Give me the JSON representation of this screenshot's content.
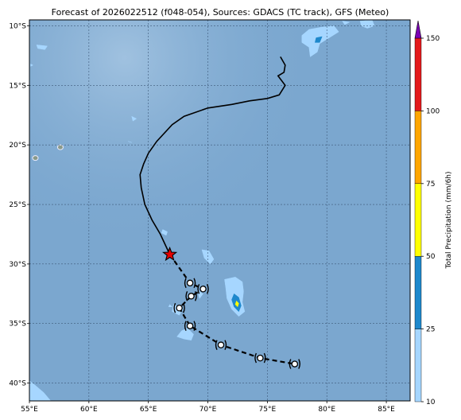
{
  "title": "Forecast of 2026022512 (f048-054), Sources: GDACS (TC track), GFS (Meteo)",
  "map": {
    "lon_range": [
      55,
      87
    ],
    "lat_range": [
      -41.5,
      -9.5
    ],
    "lon_ticks": [
      {
        "value": 55,
        "label": "55°E"
      },
      {
        "value": 60,
        "label": "60°E"
      },
      {
        "value": 65,
        "label": "65°E"
      },
      {
        "value": 70,
        "label": "70°E"
      },
      {
        "value": 75,
        "label": "75°E"
      },
      {
        "value": 80,
        "label": "80°E"
      },
      {
        "value": 85,
        "label": "85°E"
      }
    ],
    "lat_ticks": [
      {
        "value": -10,
        "label": "10°S"
      },
      {
        "value": -15,
        "label": "15°S"
      },
      {
        "value": -20,
        "label": "20°S"
      },
      {
        "value": -25,
        "label": "25°S"
      },
      {
        "value": -30,
        "label": "30°S"
      },
      {
        "value": -35,
        "label": "35°S"
      },
      {
        "value": -40,
        "label": "40°S"
      }
    ],
    "gridlines": true,
    "ocean_color": "#7ba7cf",
    "past_track_color": "#000000",
    "forecast_track_color": "#000000",
    "current_position_marker": "red-star",
    "current_position": {
      "lon": 66.8,
      "lat": -29.2
    },
    "past_track": [
      {
        "lon": 76.1,
        "lat": -12.6
      },
      {
        "lon": 76.5,
        "lat": -13.3
      },
      {
        "lon": 76.4,
        "lat": -13.9
      },
      {
        "lon": 75.9,
        "lat": -14.2
      },
      {
        "lon": 76.5,
        "lat": -15.0
      },
      {
        "lon": 76.0,
        "lat": -15.8
      },
      {
        "lon": 75.0,
        "lat": -16.1
      },
      {
        "lon": 73.5,
        "lat": -16.3
      },
      {
        "lon": 72.0,
        "lat": -16.6
      },
      {
        "lon": 70.0,
        "lat": -16.9
      },
      {
        "lon": 68.0,
        "lat": -17.6
      },
      {
        "lon": 67.0,
        "lat": -18.3
      },
      {
        "lon": 65.7,
        "lat": -19.7
      },
      {
        "lon": 65.0,
        "lat": -20.7
      },
      {
        "lon": 64.6,
        "lat": -21.6
      },
      {
        "lon": 64.3,
        "lat": -22.5
      },
      {
        "lon": 64.4,
        "lat": -23.6
      },
      {
        "lon": 64.7,
        "lat": -25.0
      },
      {
        "lon": 65.3,
        "lat": -26.3
      },
      {
        "lon": 66.0,
        "lat": -27.5
      },
      {
        "lon": 66.8,
        "lat": -29.2
      }
    ],
    "forecast_track": [
      {
        "lon": 66.8,
        "lat": -29.2
      },
      {
        "lon": 68.5,
        "lat": -31.6
      },
      {
        "lon": 69.6,
        "lat": -32.1
      },
      {
        "lon": 68.6,
        "lat": -32.7
      },
      {
        "lon": 67.6,
        "lat": -33.7
      },
      {
        "lon": 68.5,
        "lat": -35.2
      },
      {
        "lon": 71.1,
        "lat": -36.8
      },
      {
        "lon": 74.4,
        "lat": -37.9
      },
      {
        "lon": 77.3,
        "lat": -38.4
      }
    ],
    "forecast_symbols": [
      {
        "lon": 68.5,
        "lat": -31.6
      },
      {
        "lon": 69.6,
        "lat": -32.1
      },
      {
        "lon": 68.6,
        "lat": -32.7
      },
      {
        "lon": 67.6,
        "lat": -33.7
      },
      {
        "lon": 68.5,
        "lat": -35.2
      },
      {
        "lon": 71.1,
        "lat": -36.8
      },
      {
        "lon": 74.4,
        "lat": -37.9
      },
      {
        "lon": 77.3,
        "lat": -38.4
      }
    ],
    "precip_patches": [
      {
        "color": "#a6d6ff",
        "points": [
          [
            72.3,
            -31.1
          ],
          [
            72.9,
            -31.5
          ],
          [
            73.0,
            -32.3
          ],
          [
            72.9,
            -33.2
          ],
          [
            73.1,
            -34.0
          ],
          [
            72.6,
            -34.4
          ],
          [
            72.0,
            -33.8
          ],
          [
            71.6,
            -32.9
          ],
          [
            71.5,
            -32.0
          ],
          [
            71.4,
            -31.3
          ]
        ]
      },
      {
        "color": "#1e88cc",
        "points": [
          [
            72.2,
            -32.5
          ],
          [
            72.6,
            -32.8
          ],
          [
            72.8,
            -33.5
          ],
          [
            72.6,
            -34.0
          ],
          [
            72.2,
            -33.6
          ],
          [
            72.0,
            -33.0
          ]
        ]
      },
      {
        "color": "#ffff00",
        "points": [
          [
            72.4,
            -33.1
          ],
          [
            72.6,
            -33.3
          ],
          [
            72.5,
            -33.6
          ],
          [
            72.3,
            -33.4
          ]
        ]
      },
      {
        "color": "#a6d6ff",
        "points": [
          [
            69.5,
            -28.8
          ],
          [
            70.1,
            -28.9
          ],
          [
            70.5,
            -29.6
          ],
          [
            70.2,
            -30.0
          ],
          [
            69.7,
            -29.5
          ]
        ]
      },
      {
        "color": "#a6d6ff",
        "points": [
          [
            68.3,
            -35.4
          ],
          [
            68.8,
            -35.9
          ],
          [
            68.6,
            -36.4
          ],
          [
            68.0,
            -36.3
          ],
          [
            67.4,
            -36.1
          ],
          [
            67.8,
            -35.6
          ]
        ]
      },
      {
        "color": "#a6d6ff",
        "points": [
          [
            67.1,
            -33.4
          ],
          [
            67.9,
            -33.8
          ],
          [
            67.6,
            -34.3
          ],
          [
            67.0,
            -34.0
          ]
        ]
      },
      {
        "color": "#a6d6ff",
        "points": [
          [
            69.1,
            -32.2
          ],
          [
            69.6,
            -32.5
          ],
          [
            69.3,
            -32.9
          ]
        ]
      },
      {
        "color": "#a6d6ff",
        "points": [
          [
            66.8,
            -33.4
          ],
          [
            67.0,
            -33.6
          ],
          [
            66.7,
            -33.6
          ]
        ]
      },
      {
        "color": "#a6d6ff",
        "points": [
          [
            66.2,
            -27.1
          ],
          [
            66.6,
            -27.3
          ],
          [
            66.5,
            -27.6
          ],
          [
            66.1,
            -27.4
          ]
        ]
      },
      {
        "color": "#a6d6ff",
        "points": [
          [
            77.9,
            -10.8
          ],
          [
            78.5,
            -10.3
          ],
          [
            79.6,
            -10.1
          ],
          [
            80.6,
            -10.0
          ],
          [
            81.0,
            -10.5
          ],
          [
            80.2,
            -11.0
          ],
          [
            79.4,
            -11.5
          ],
          [
            79.2,
            -12.2
          ],
          [
            78.6,
            -12.6
          ],
          [
            78.5,
            -11.8
          ],
          [
            77.9,
            -11.4
          ]
        ]
      },
      {
        "color": "#1e88cc",
        "points": [
          [
            79.1,
            -11.0
          ],
          [
            79.6,
            -10.9
          ],
          [
            79.4,
            -11.4
          ],
          [
            79.0,
            -11.4
          ]
        ]
      },
      {
        "color": "#a6d6ff",
        "points": [
          [
            82.8,
            -9.6
          ],
          [
            83.8,
            -9.5
          ],
          [
            84.0,
            -10.0
          ],
          [
            83.4,
            -10.2
          ],
          [
            82.9,
            -10.0
          ]
        ]
      },
      {
        "color": "#a6d6ff",
        "points": [
          [
            81.3,
            -9.6
          ],
          [
            81.9,
            -9.7
          ],
          [
            81.5,
            -9.9
          ]
        ]
      },
      {
        "color": "#a6d6ff",
        "points": [
          [
            55.6,
            -11.6
          ],
          [
            56.5,
            -11.7
          ],
          [
            56.3,
            -12.0
          ],
          [
            55.7,
            -11.9
          ]
        ]
      },
      {
        "color": "#a6d6ff",
        "points": [
          [
            55.1,
            -13.2
          ],
          [
            55.3,
            -13.3
          ],
          [
            55.1,
            -13.4
          ]
        ]
      },
      {
        "color": "#a6d6ff",
        "points": [
          [
            55.0,
            -39.8
          ],
          [
            55.5,
            -40.2
          ],
          [
            56.2,
            -40.8
          ],
          [
            56.8,
            -41.5
          ],
          [
            55.0,
            -41.5
          ]
        ]
      },
      {
        "color": "#a6d6ff",
        "points": [
          [
            63.6,
            -17.6
          ],
          [
            64.0,
            -17.8
          ],
          [
            63.7,
            -18.0
          ]
        ]
      },
      {
        "color": "#a6d6ff",
        "points": [
          [
            63.3,
            -19.7
          ],
          [
            63.6,
            -19.8
          ]
        ]
      }
    ],
    "islands": [
      {
        "name": "reunion",
        "lon": 55.5,
        "lat": -21.1
      },
      {
        "name": "mauritius",
        "lon": 57.6,
        "lat": -20.2
      }
    ]
  },
  "colorbar": {
    "label": "Total Precipitation (mm/6h)",
    "levels": [
      10,
      25,
      50,
      75,
      100,
      150
    ],
    "tick_labels": [
      "10",
      "25",
      "50",
      "75",
      "100",
      "150"
    ],
    "colors": [
      "#a6d6ff",
      "#1e88cc",
      "#ffff00",
      "#ffa500",
      "#e31a1c"
    ],
    "extend_color": "#7b00b4"
  }
}
